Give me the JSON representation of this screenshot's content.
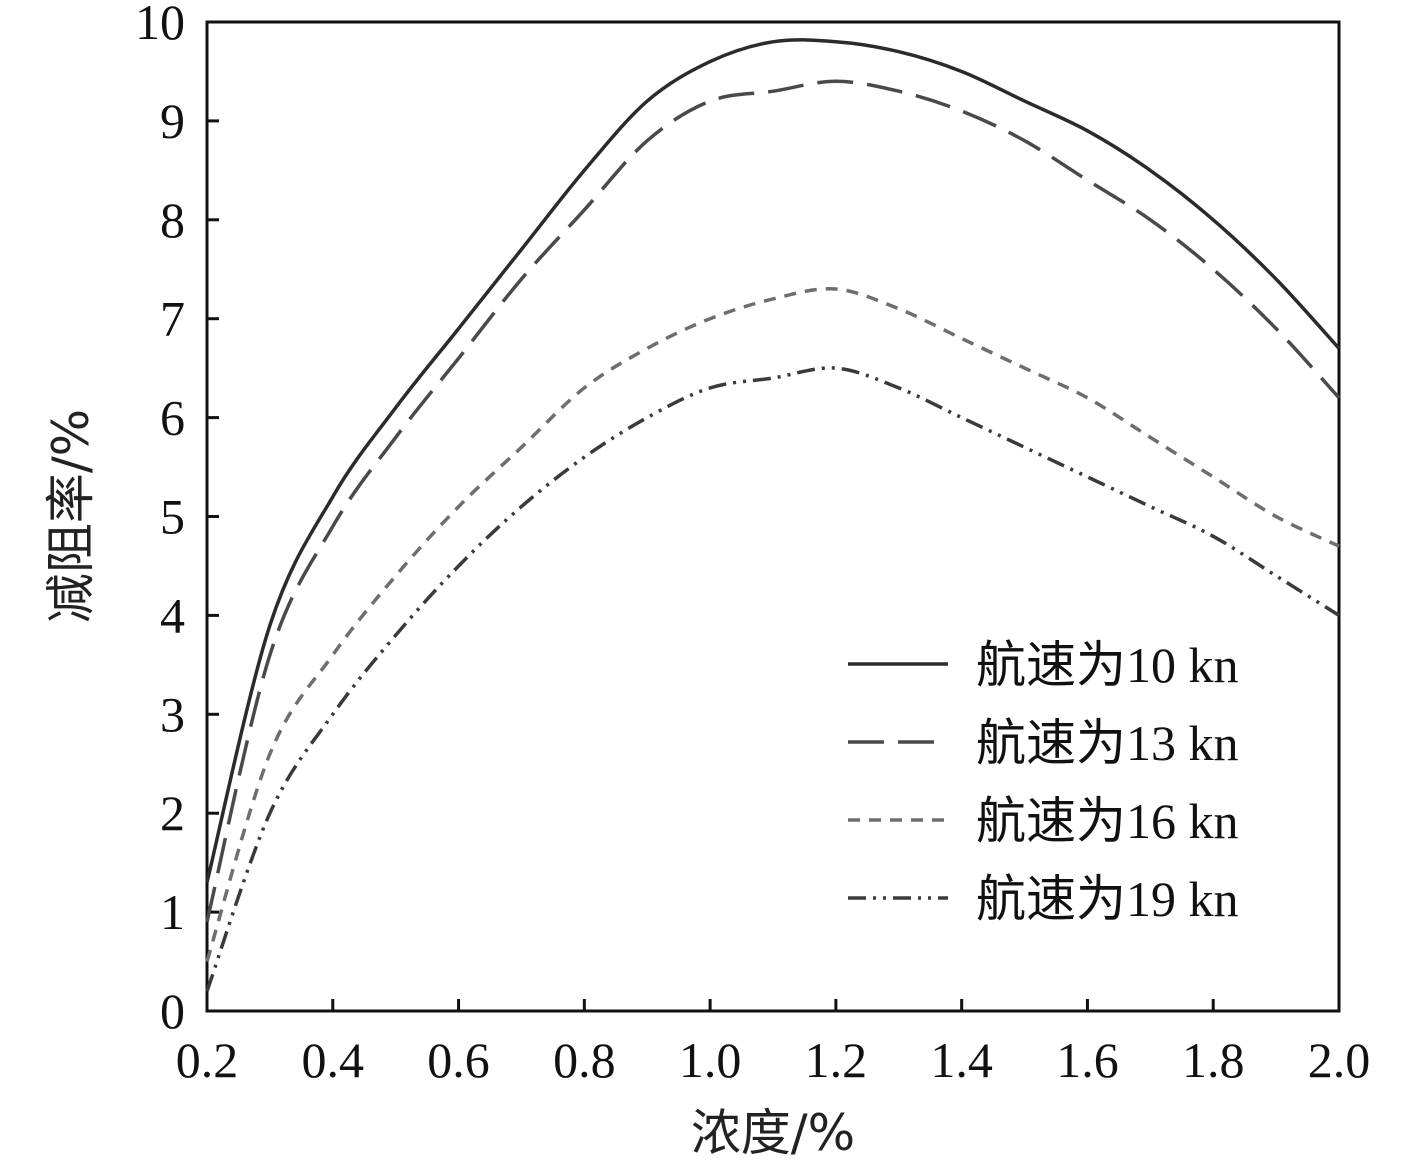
{
  "chart_data": {
    "type": "line",
    "title": "",
    "xlabel": "浓度/%",
    "ylabel": "减阻率/%",
    "xlim": [
      0.2,
      2.0
    ],
    "ylim": [
      0,
      10
    ],
    "x_ticks": [
      "0.2",
      "0.4",
      "0.6",
      "0.8",
      "1.0",
      "1.2",
      "1.4",
      "1.6",
      "1.8",
      "2.0"
    ],
    "y_ticks": [
      "0",
      "1",
      "2",
      "3",
      "4",
      "5",
      "6",
      "7",
      "8",
      "9",
      "10"
    ],
    "legend_position": "bottom-right",
    "grid": false,
    "x": [
      0.2,
      0.3,
      0.4,
      0.5,
      0.6,
      0.7,
      0.8,
      0.9,
      1.0,
      1.1,
      1.2,
      1.3,
      1.4,
      1.5,
      1.6,
      1.7,
      1.8,
      1.9,
      2.0
    ],
    "series": [
      {
        "name": "航速为10 kn",
        "color": "#2b2b2b",
        "dash": "solid",
        "values": [
          1.3,
          3.9,
          5.2,
          6.1,
          6.9,
          7.7,
          8.5,
          9.2,
          9.6,
          9.8,
          9.8,
          9.7,
          9.5,
          9.2,
          8.9,
          8.5,
          8.0,
          7.4,
          6.7
        ]
      },
      {
        "name": "航速为13 kn",
        "color": "#4a4a4a",
        "dash": "long-dash",
        "values": [
          0.9,
          3.6,
          4.9,
          5.8,
          6.6,
          7.4,
          8.1,
          8.8,
          9.2,
          9.3,
          9.4,
          9.3,
          9.1,
          8.8,
          8.4,
          8.0,
          7.5,
          6.9,
          6.2
        ]
      },
      {
        "name": "航速为16 kn",
        "color": "#6e6e6e",
        "dash": "short-dash",
        "values": [
          0.5,
          2.6,
          3.6,
          4.4,
          5.1,
          5.7,
          6.3,
          6.7,
          7.0,
          7.2,
          7.3,
          7.1,
          6.8,
          6.5,
          6.2,
          5.8,
          5.4,
          5.0,
          4.7
        ]
      },
      {
        "name": "航速为19 kn",
        "color": "#3a3a3a",
        "dash": "dash-dot-dot",
        "values": [
          0.2,
          2.0,
          3.0,
          3.8,
          4.5,
          5.1,
          5.6,
          6.0,
          6.3,
          6.4,
          6.5,
          6.3,
          6.0,
          5.7,
          5.4,
          5.1,
          4.8,
          4.4,
          4.0
        ]
      }
    ]
  }
}
